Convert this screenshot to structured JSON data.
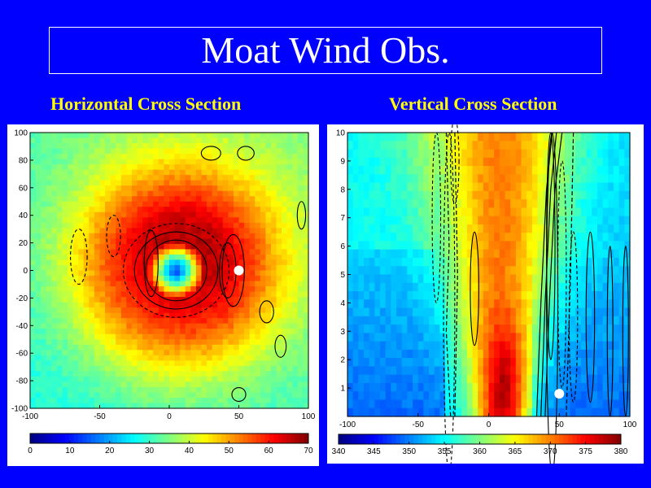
{
  "slide": {
    "title": "Moat Wind Obs.",
    "bg_color": "#0000ff",
    "title_color": "#ffffff",
    "subtitle_color": "#ffff00"
  },
  "chart_data": [
    {
      "type": "heatmap",
      "title": "Horizontal Cross Section",
      "x_ticks": [
        -100,
        -50,
        0,
        50,
        100
      ],
      "y_ticks": [
        100,
        80,
        60,
        40,
        20,
        0,
        -20,
        -40,
        -60,
        -80,
        -100
      ],
      "xlim": [
        -100,
        100
      ],
      "ylim": [
        -100,
        100
      ],
      "colorbar": {
        "ticks": [
          0,
          10,
          20,
          30,
          40,
          50,
          60,
          70
        ],
        "range": [
          0,
          70
        ]
      },
      "marker": {
        "x": 50,
        "y": 0,
        "color": "#ffffff"
      }
    },
    {
      "type": "heatmap",
      "title": "Vertical Cross Section",
      "x_ticks": [
        -100,
        -50,
        0,
        50,
        100
      ],
      "y_ticks": [
        10,
        9,
        8,
        7,
        6,
        5,
        4,
        3,
        2,
        1
      ],
      "xlim": [
        -100,
        100
      ],
      "ylim": [
        0,
        10
      ],
      "colorbar": {
        "ticks": [
          340,
          345,
          350,
          355,
          360,
          365,
          370,
          375,
          380
        ],
        "range": [
          340,
          380
        ]
      },
      "marker": {
        "x": 50,
        "y": 0.8,
        "color": "#ffffff"
      }
    }
  ]
}
